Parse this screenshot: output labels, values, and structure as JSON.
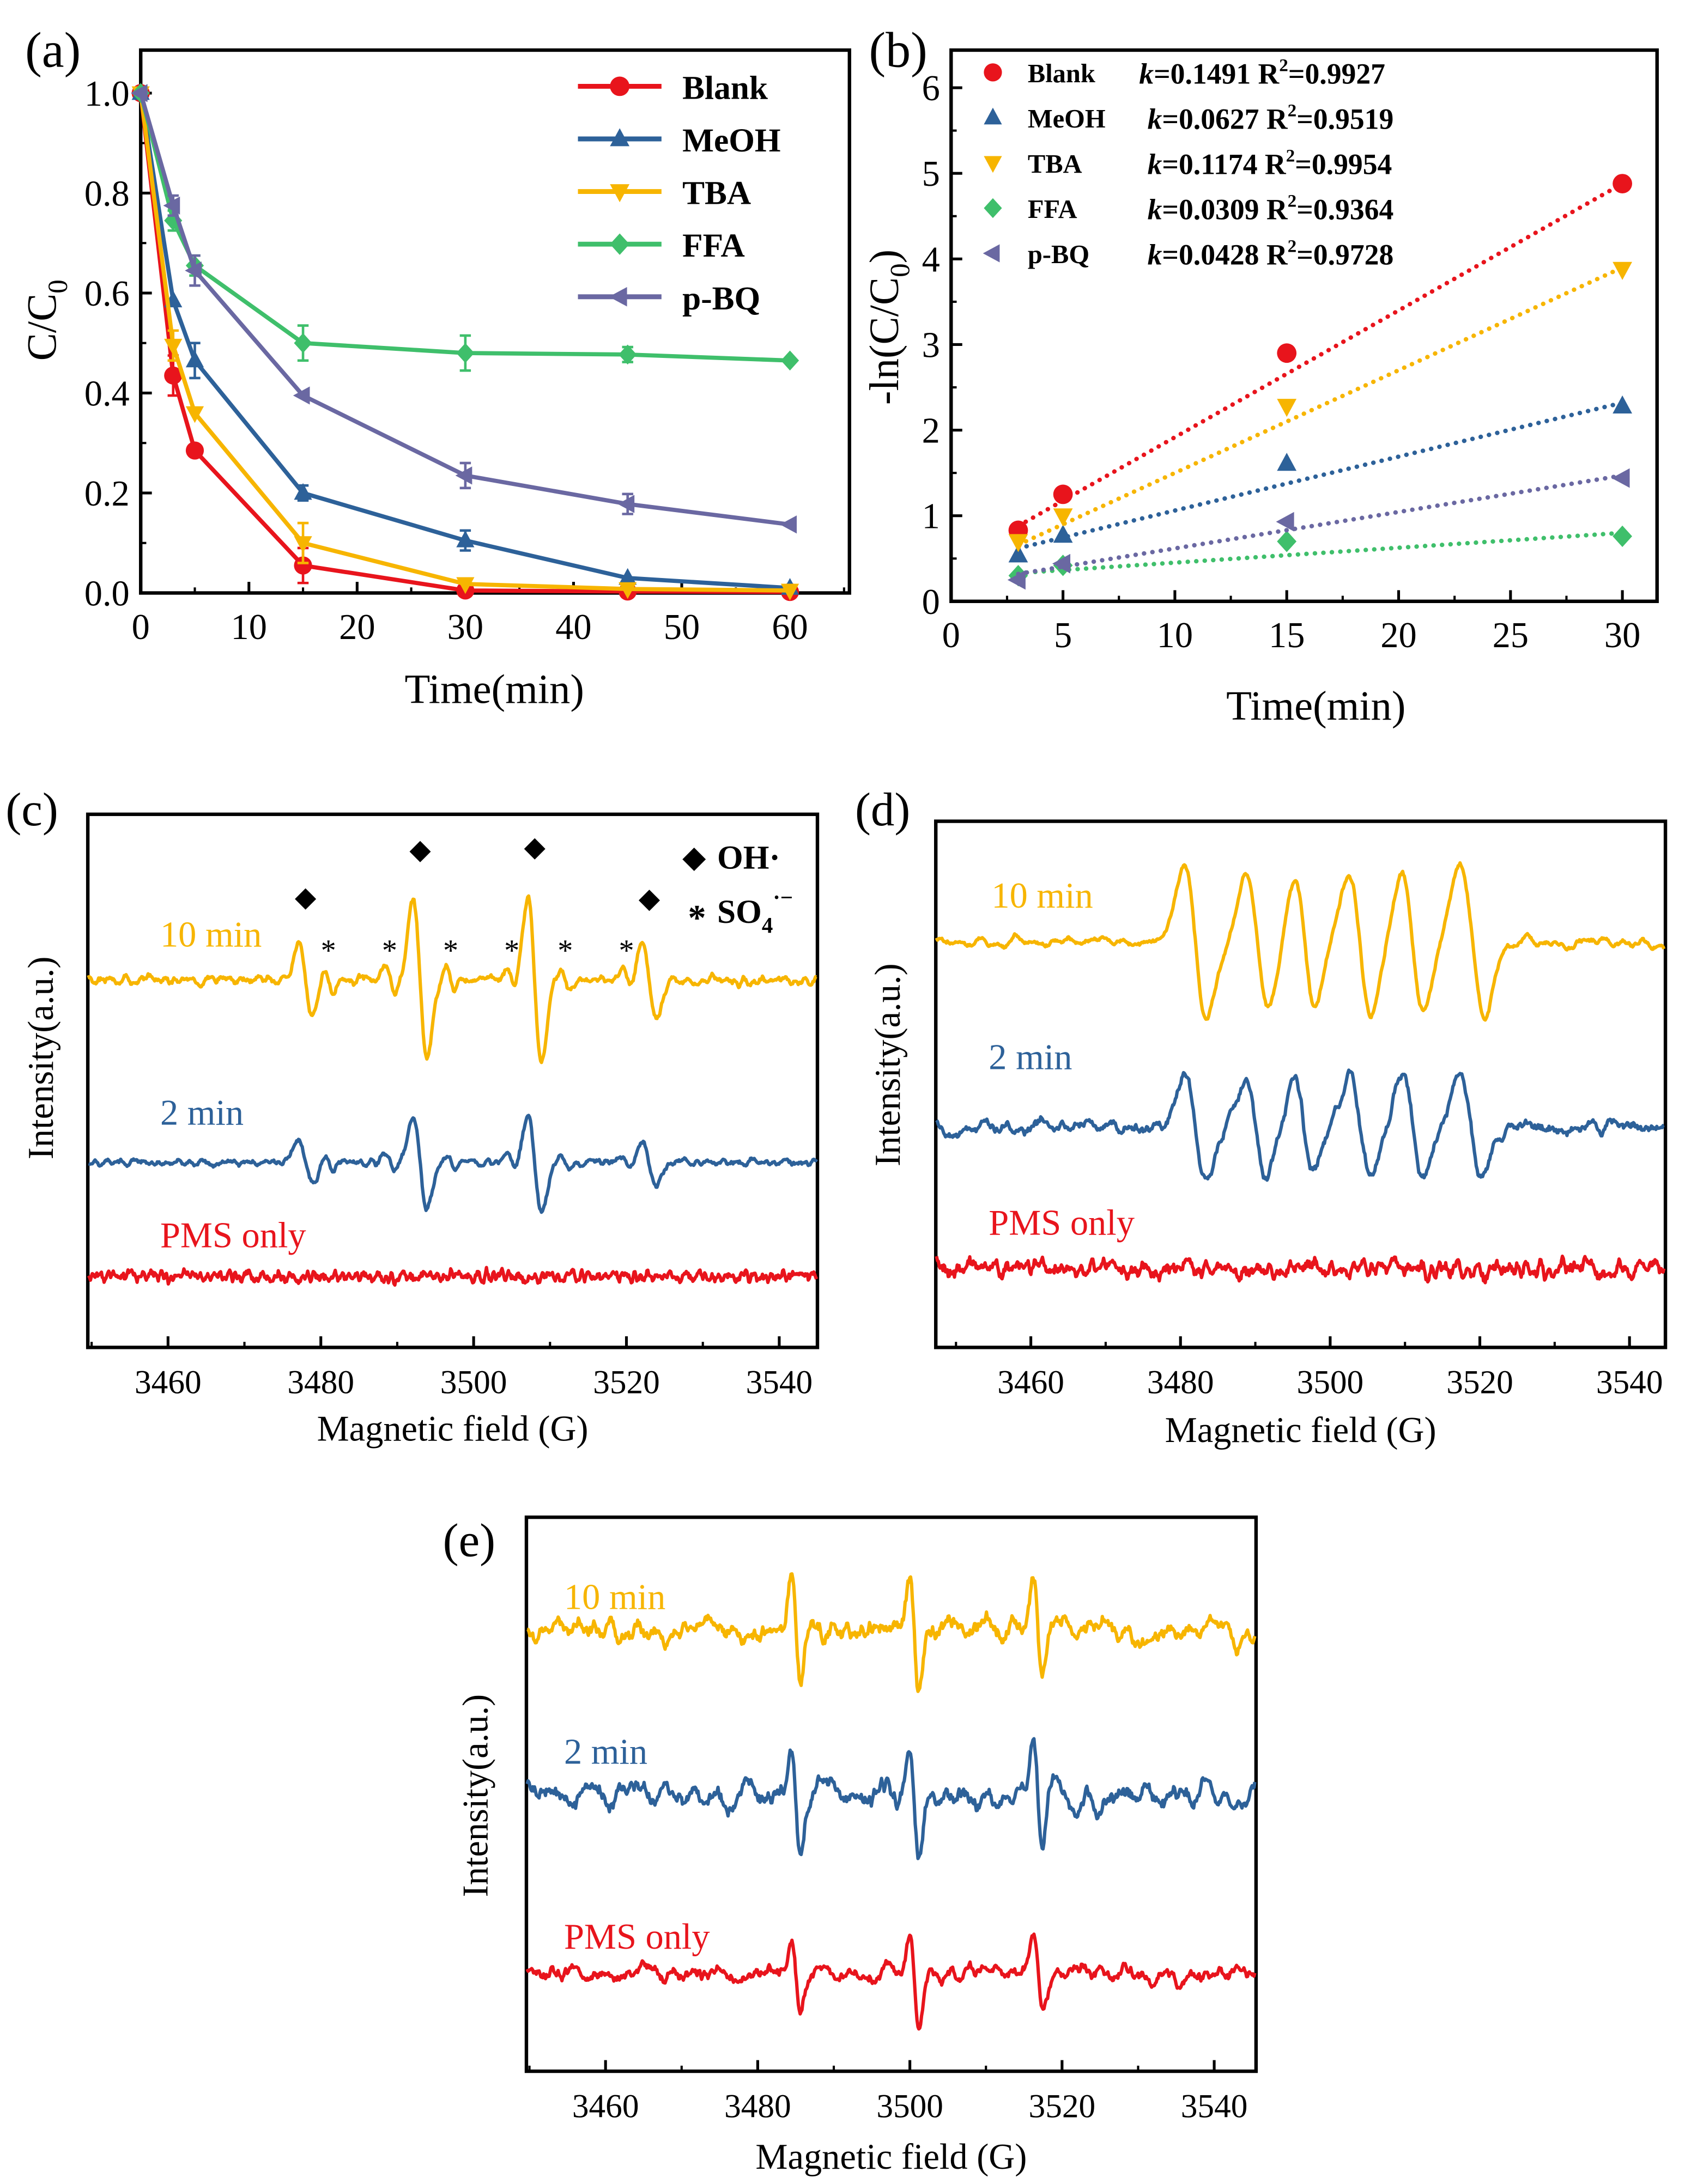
{
  "colors": {
    "blank": "#e8141c",
    "meoh": "#2d6199",
    "tba": "#f7b500",
    "ffa": "#3fbf6b",
    "pbq": "#6a68a2",
    "axis": "#000000"
  },
  "chart_data": [
    {
      "panel": "(a)",
      "type": "line",
      "xlabel": "Time(min)",
      "ylabel": {
        "main": "C/C",
        "sub": "0"
      },
      "xlim": [
        0,
        65.5
      ],
      "ylim": [
        0,
        1.086
      ],
      "xticks": [
        0,
        10,
        20,
        30,
        40,
        50,
        60
      ],
      "xtick_labels": [
        "0",
        "10",
        "20",
        "30",
        "40",
        "50",
        "60"
      ],
      "yticks": [
        0,
        0.2,
        0.4,
        0.6,
        0.8,
        1.0
      ],
      "ytick_labels": [
        "0.0",
        "0.2",
        "0.4",
        "0.6",
        "0.8",
        "1.0"
      ],
      "x": [
        0,
        3,
        5,
        15,
        30,
        45,
        60
      ],
      "legend_position": "top-right",
      "series": [
        {
          "name": "Blank",
          "color_key": "blank",
          "marker": "circle",
          "values": [
            1.0,
            0.435,
            0.285,
            0.055,
            0.005,
            0.003,
            0.002
          ],
          "errors": [
            0,
            0.04,
            0,
            0.035,
            0,
            0,
            0
          ]
        },
        {
          "name": "MeOH",
          "color_key": "meoh",
          "marker": "triangle-up",
          "values": [
            1.0,
            0.585,
            0.465,
            0.2,
            0.105,
            0.03,
            0.01
          ],
          "errors": [
            0,
            0,
            0.035,
            0.015,
            0.02,
            0,
            0
          ]
        },
        {
          "name": "TBA",
          "color_key": "tba",
          "marker": "triangle-down",
          "values": [
            1.0,
            0.495,
            0.36,
            0.1,
            0.018,
            0.008,
            0.005
          ],
          "errors": [
            0,
            0.03,
            0,
            0.04,
            0,
            0,
            0
          ]
        },
        {
          "name": "FFA",
          "color_key": "ffa",
          "marker": "diamond",
          "values": [
            1.0,
            0.745,
            0.655,
            0.5,
            0.48,
            0.477,
            0.465
          ],
          "errors": [
            0,
            0.02,
            0.02,
            0.035,
            0.035,
            0.015,
            0
          ]
        },
        {
          "name": "p-BQ",
          "color_key": "pbq",
          "marker": "triangle-left",
          "values": [
            1.0,
            0.775,
            0.645,
            0.395,
            0.235,
            0.178,
            0.137
          ],
          "errors": [
            0,
            0.02,
            0.03,
            0,
            0.025,
            0.02,
            0
          ]
        }
      ]
    },
    {
      "panel": "(b)",
      "type": "scatter",
      "xlabel": "Time(min)",
      "ylabel": {
        "main": "-ln(C/C",
        "sub": "0",
        "tail": ")"
      },
      "xlim": [
        0,
        31.55
      ],
      "ylim": [
        0,
        6.44
      ],
      "xticks": [
        0,
        5,
        10,
        15,
        20,
        25,
        30
      ],
      "xtick_labels": [
        "0",
        "5",
        "10",
        "15",
        "20",
        "25",
        "30"
      ],
      "yticks": [
        0,
        1,
        2,
        3,
        4,
        5,
        6
      ],
      "ytick_labels": [
        "0",
        "1",
        "2",
        "3",
        "4",
        "5",
        "6"
      ],
      "x": [
        3,
        5,
        15,
        30
      ],
      "legend_position": "top-left",
      "fit_format": {
        "k": "k",
        "eq": "=",
        "r": " R",
        "sq": "2"
      },
      "series": [
        {
          "name": "Blank",
          "color_key": "blank",
          "marker": "circle",
          "values": [
            0.83,
            1.25,
            2.9,
            4.88
          ],
          "k": "0.1491",
          "r2": "0.9927",
          "fit_line": [
            [
              3,
              0.88
            ],
            [
              30,
              4.88
            ]
          ]
        },
        {
          "name": "MeOH",
          "color_key": "meoh",
          "marker": "triangle-up",
          "values": [
            0.54,
            0.77,
            1.61,
            2.28
          ],
          "k": "0.0627",
          "r2": "0.9519",
          "fit_line": [
            [
              3,
              0.62
            ],
            [
              30,
              2.32
            ]
          ]
        },
        {
          "name": "TBA",
          "color_key": "tba",
          "marker": "triangle-down",
          "values": [
            0.7,
            1.0,
            2.28,
            3.88
          ],
          "k": "0.1174",
          "r2": "0.9954",
          "fit_line": [
            [
              3,
              0.66
            ],
            [
              30,
              3.9
            ]
          ]
        },
        {
          "name": "FFA",
          "color_key": "ffa",
          "marker": "diamond",
          "values": [
            0.3,
            0.42,
            0.7,
            0.76
          ],
          "k": "0.0309",
          "r2": "0.9364",
          "fit_line": [
            [
              3,
              0.33
            ],
            [
              30,
              0.8
            ]
          ]
        },
        {
          "name": "p-BQ",
          "color_key": "pbq",
          "marker": "triangle-left",
          "values": [
            0.25,
            0.44,
            0.93,
            1.44
          ],
          "k": "0.0428",
          "r2": "0.9728",
          "fit_line": [
            [
              3,
              0.32
            ],
            [
              30,
              1.47
            ]
          ]
        }
      ]
    },
    {
      "panel": "(c)",
      "type": "line",
      "xlabel": "Magnetic field (G)",
      "ylabel": "Intensity(a.u.)",
      "xlim": [
        3449.5,
        3545
      ],
      "ylim": [
        0,
        10
      ],
      "xticks": [
        3460,
        3480,
        3500,
        3520,
        3540
      ],
      "xtick_labels": [
        "3460",
        "3480",
        "3500",
        "3520",
        "3540"
      ],
      "legend": [
        {
          "symbol": "◆",
          "label": "OH·"
        },
        {
          "symbol": "*",
          "label": "SO",
          "sub": "4",
          "sup": "·−"
        }
      ],
      "annotations": {
        "oh_symbol": "◆",
        "oh_positions": [
          3478,
          3493,
          3508,
          3523
        ],
        "so4_symbol": "*",
        "so4_positions": [
          3481,
          3489,
          3497,
          3505,
          3512,
          3520
        ]
      },
      "series": [
        {
          "name": "10 min",
          "color_key": "tba",
          "offset": 6.9,
          "noise": 0.13,
          "smooth": 2,
          "seed": 11,
          "peaks": [
            [
              3478,
              0.7,
              0.9
            ],
            [
              3493,
              1.5,
              0.9
            ],
            [
              3508,
              1.55,
              0.9
            ],
            [
              3523,
              0.7,
              0.9
            ],
            [
              3481,
              0.2,
              0.6
            ],
            [
              3489,
              0.25,
              0.6
            ],
            [
              3497,
              0.2,
              0.6
            ],
            [
              3505,
              0.2,
              0.6
            ],
            [
              3512,
              0.25,
              0.6
            ],
            [
              3520,
              0.2,
              0.6
            ]
          ]
        },
        {
          "name": "2 min",
          "color_key": "meoh",
          "offset": 3.47,
          "noise": 0.1,
          "smooth": 2,
          "seed": 23,
          "peaks": [
            [
              3478,
              0.4,
              0.9
            ],
            [
              3493,
              0.85,
              0.9
            ],
            [
              3508,
              0.9,
              0.9
            ],
            [
              3523,
              0.4,
              0.9
            ],
            [
              3481,
              0.12,
              0.6
            ],
            [
              3489,
              0.15,
              0.6
            ],
            [
              3497,
              0.12,
              0.6
            ],
            [
              3505,
              0.15,
              0.6
            ],
            [
              3512,
              0.15,
              0.6
            ],
            [
              3520,
              0.12,
              0.6
            ]
          ]
        },
        {
          "name": "PMS only",
          "color_key": "blank",
          "offset": 1.33,
          "noise": 0.17,
          "smooth": 1,
          "seed": 37,
          "peaks": []
        }
      ]
    },
    {
      "panel": "(d)",
      "type": "line",
      "xlabel": "Magnetic field (G)",
      "ylabel": "Intensity(a.u.)",
      "xlim": [
        3447.3,
        3544.8
      ],
      "ylim": [
        0,
        10
      ],
      "xticks": [
        3460,
        3480,
        3500,
        3520,
        3540
      ],
      "xtick_labels": [
        "3460",
        "3480",
        "3500",
        "3520",
        "3540"
      ],
      "series": [
        {
          "name": "10 min",
          "color_key": "tba",
          "offset": 7.7,
          "noise": 0.14,
          "smooth": 5,
          "seed": 5,
          "peaks": [
            [
              3482,
              1.45,
              1.5
            ],
            [
              3490.3,
              1.3,
              1.5
            ],
            [
              3496.6,
              1.25,
              1.4
            ],
            [
              3504,
              1.3,
              1.5
            ],
            [
              3511,
              1.3,
              1.5
            ],
            [
              3519,
              1.4,
              1.6
            ]
          ]
        },
        {
          "name": "2 min",
          "color_key": "meoh",
          "offset": 4.2,
          "noise": 0.22,
          "smooth": 4,
          "seed": 9,
          "peaks": [
            [
              3482,
              1.05,
              1.4
            ],
            [
              3490,
              0.95,
              1.4
            ],
            [
              3496.5,
              0.9,
              1.3
            ],
            [
              3504,
              1.0,
              1.4
            ],
            [
              3511,
              1.0,
              1.4
            ],
            [
              3518.8,
              1.05,
              1.5
            ]
          ]
        },
        {
          "name": "PMS only",
          "color_key": "blank",
          "offset": 1.5,
          "noise": 0.28,
          "smooth": 2,
          "seed": 13,
          "peaks": []
        }
      ]
    },
    {
      "panel": "(e)",
      "type": "line",
      "xlabel": "Magnetic field (G)",
      "ylabel": "Intensity(a.u.)",
      "xlim": [
        3449.6,
        3545.5
      ],
      "ylim": [
        0,
        10
      ],
      "xticks": [
        3460,
        3480,
        3500,
        3520,
        3540
      ],
      "xtick_labels": [
        "3460",
        "3480",
        "3500",
        "3520",
        "3540"
      ],
      "series": [
        {
          "name": "10 min",
          "color_key": "tba",
          "offset": 7.94,
          "noise": 0.38,
          "smooth": 5,
          "seed": 3,
          "peaks": [
            [
              3485,
              0.95,
              0.6
            ],
            [
              3500.6,
              1.0,
              0.6
            ],
            [
              3516.8,
              0.85,
              0.6
            ]
          ]
        },
        {
          "name": "2 min",
          "color_key": "meoh",
          "offset": 4.97,
          "noise": 0.38,
          "smooth": 5,
          "seed": 7,
          "peaks": [
            [
              3485,
              0.9,
              0.6
            ],
            [
              3500.6,
              1.05,
              0.6
            ],
            [
              3516.8,
              0.9,
              0.6
            ]
          ]
        },
        {
          "name": "PMS only",
          "color_key": "blank",
          "offset": 1.76,
          "noise": 0.26,
          "smooth": 5,
          "seed": 17,
          "peaks": [
            [
              3485,
              0.7,
              0.6
            ],
            [
              3500.6,
              0.8,
              0.6
            ],
            [
              3516.8,
              0.7,
              0.6
            ]
          ]
        }
      ]
    }
  ]
}
